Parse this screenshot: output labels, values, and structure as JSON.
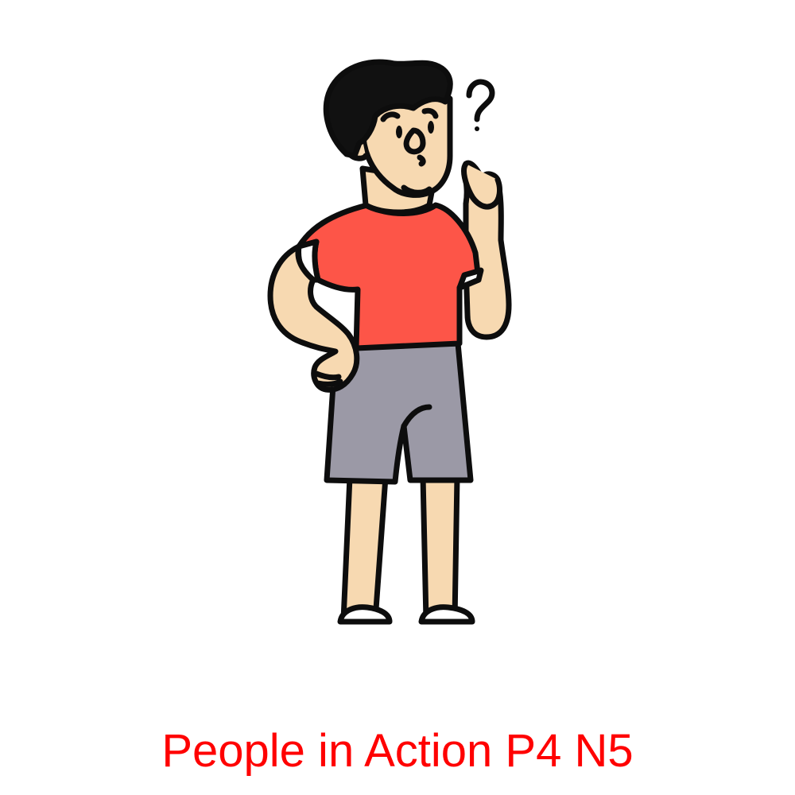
{
  "caption": "People in Action P4 N5",
  "colors": {
    "outline": "#0d0d0d",
    "skin": "#f7d9b1",
    "shirt": "#fd5548",
    "shorts": "#9b99a6",
    "hair": "#111111",
    "shoe": "#ffffff",
    "caption": "#ff0000"
  },
  "figure": {
    "subject": "thinking-man-icon",
    "symbol": "question-mark-icon"
  }
}
